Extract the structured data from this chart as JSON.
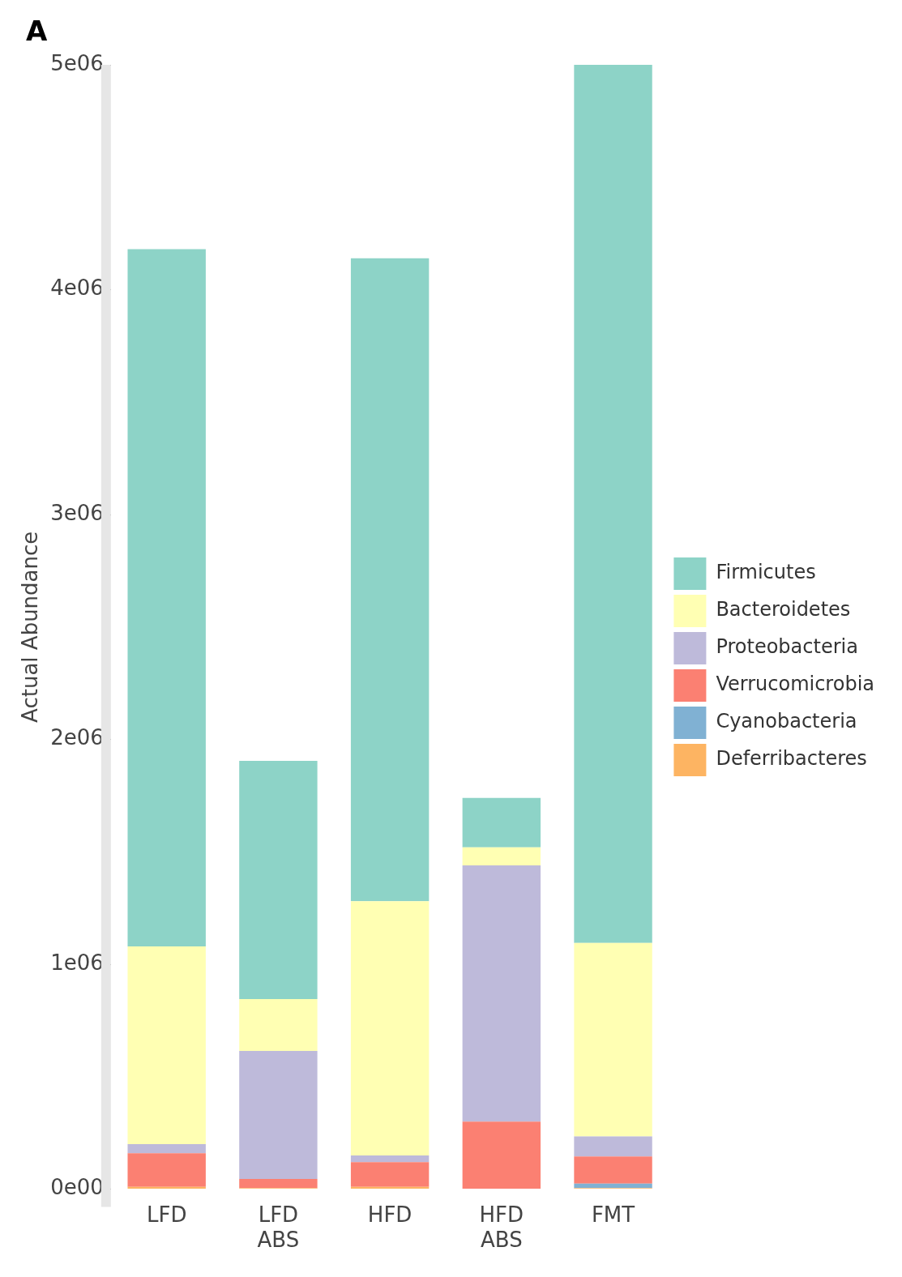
{
  "chart_data": {
    "type": "bar",
    "stacked": true,
    "ylabel": "Actual Abundance",
    "annotations": [
      "A"
    ],
    "categories": [
      "LFD",
      "LFD ABS",
      "HFD",
      "HFD ABS",
      "FMT"
    ],
    "series": [
      {
        "name": "Deferribacteres",
        "color": "#fdb462",
        "values": [
          10000,
          5000,
          10000,
          null,
          5000
        ]
      },
      {
        "name": "Cyanobacteria",
        "color": "#80b1d3",
        "values": [
          null,
          null,
          null,
          null,
          20000
        ]
      },
      {
        "name": "Verrucomicrobia",
        "color": "#fb8072",
        "values": [
          150000,
          40000,
          110000,
          300000,
          120000
        ]
      },
      {
        "name": "Proteobacteria",
        "color": "#bebada",
        "values": [
          40000,
          570000,
          30000,
          1140000,
          90000
        ]
      },
      {
        "name": "Bacteroidetes",
        "color": "#ffffb3",
        "values": [
          880000,
          230000,
          1130000,
          80000,
          860000
        ]
      },
      {
        "name": "Firmicutes",
        "color": "#8dd3c7",
        "values": [
          3100000,
          1060000,
          2860000,
          220000,
          3905000
        ]
      }
    ],
    "ylim": [
      0,
      5000000
    ],
    "yticks": [
      {
        "value": 0,
        "label": "0e00"
      },
      {
        "value": 1000000,
        "label": "1e06"
      },
      {
        "value": 2000000,
        "label": "2e06"
      },
      {
        "value": 3000000,
        "label": "3e06"
      },
      {
        "value": 4000000,
        "label": "4e06"
      },
      {
        "value": 5000000,
        "label": "5e06"
      }
    ],
    "grid": false,
    "legend": "right"
  }
}
